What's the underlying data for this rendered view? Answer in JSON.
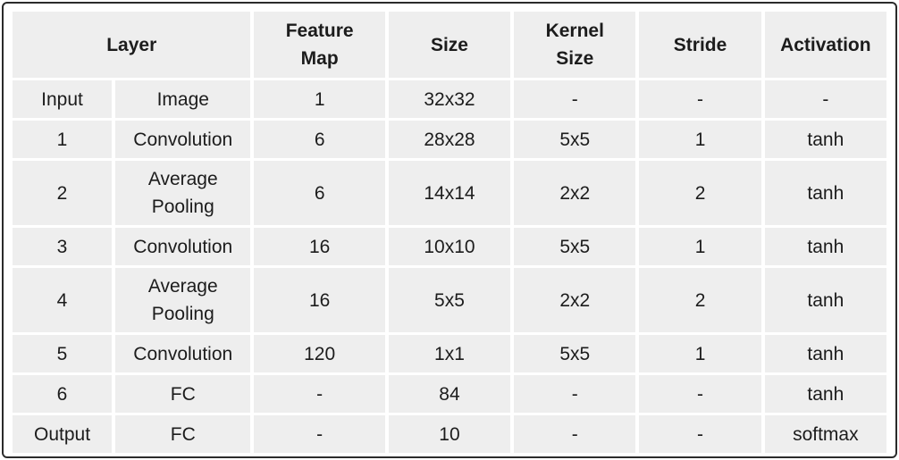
{
  "headers": {
    "layer": "Layer",
    "feature_map_line1": "Feature",
    "feature_map_line2": "Map",
    "size": "Size",
    "kernel_line1": "Kernel",
    "kernel_line2": "Size",
    "stride": "Stride",
    "activation": "Activation"
  },
  "rows": [
    {
      "layer": "Input",
      "type": "Image",
      "type2": "",
      "feature_map": "1",
      "size": "32x32",
      "kernel": "-",
      "stride": "-",
      "activation": "-"
    },
    {
      "layer": "1",
      "type": "Convolution",
      "type2": "",
      "feature_map": "6",
      "size": "28x28",
      "kernel": "5x5",
      "stride": "1",
      "activation": "tanh"
    },
    {
      "layer": "2",
      "type": "Average",
      "type2": "Pooling",
      "feature_map": "6",
      "size": "14x14",
      "kernel": "2x2",
      "stride": "2",
      "activation": "tanh"
    },
    {
      "layer": "3",
      "type": "Convolution",
      "type2": "",
      "feature_map": "16",
      "size": "10x10",
      "kernel": "5x5",
      "stride": "1",
      "activation": "tanh"
    },
    {
      "layer": "4",
      "type": "Average",
      "type2": "Pooling",
      "feature_map": "16",
      "size": "5x5",
      "kernel": "2x2",
      "stride": "2",
      "activation": "tanh"
    },
    {
      "layer": "5",
      "type": "Convolution",
      "type2": "",
      "feature_map": "120",
      "size": "1x1",
      "kernel": "5x5",
      "stride": "1",
      "activation": "tanh"
    },
    {
      "layer": "6",
      "type": "FC",
      "type2": "",
      "feature_map": "-",
      "size": "84",
      "kernel": "-",
      "stride": "-",
      "activation": "tanh"
    },
    {
      "layer": "Output",
      "type": "FC",
      "type2": "",
      "feature_map": "-",
      "size": "10",
      "kernel": "-",
      "stride": "-",
      "activation": "softmax"
    }
  ]
}
